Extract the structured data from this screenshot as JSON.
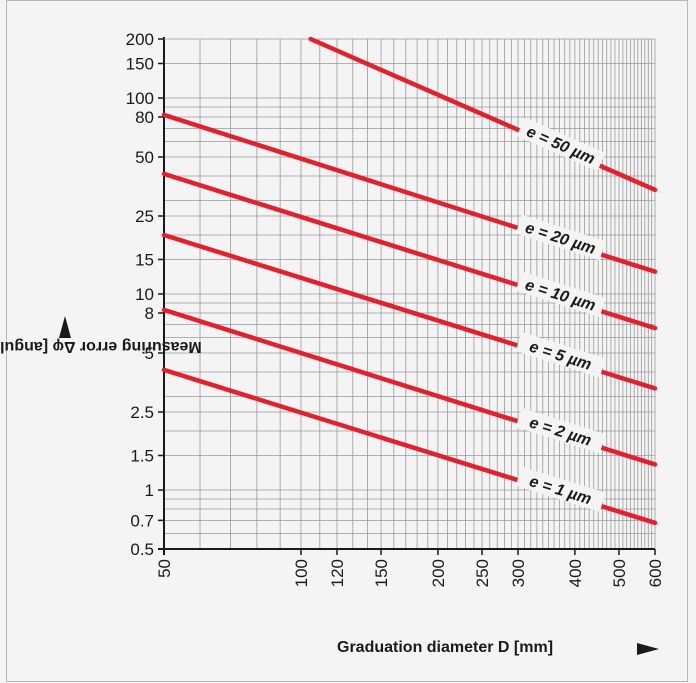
{
  "chart_data": {
    "type": "line",
    "title": "",
    "xlabel": "Graduation diameter D [mm]",
    "ylabel": "Measuring error Δφ [angular seconds]",
    "x_scale": "log",
    "y_scale": "log",
    "xlim": [
      50,
      600
    ],
    "ylim": [
      0.5,
      200
    ],
    "x_ticks": [
      50,
      100,
      120,
      150,
      200,
      250,
      300,
      400,
      500,
      600
    ],
    "y_ticks": [
      0.5,
      0.7,
      1,
      1.5,
      2.5,
      5,
      8,
      10,
      15,
      25,
      50,
      80,
      100,
      150,
      200
    ],
    "grid": true,
    "line_color": "#e3202c",
    "series": [
      {
        "name": "e = 50 µm",
        "x": [
          105,
          600
        ],
        "y": [
          200,
          34
        ]
      },
      {
        "name": "e = 20 µm",
        "x": [
          50,
          600
        ],
        "y": [
          82,
          13
        ]
      },
      {
        "name": "e = 10 µm",
        "x": [
          50,
          600
        ],
        "y": [
          41,
          6.7
        ]
      },
      {
        "name": "e = 5 µm",
        "x": [
          50,
          600
        ],
        "y": [
          20,
          3.3
        ]
      },
      {
        "name": "e = 2 µm",
        "x": [
          50,
          600
        ],
        "y": [
          8.3,
          1.35
        ]
      },
      {
        "name": "e = 1 µm",
        "x": [
          50,
          600
        ],
        "y": [
          4.1,
          0.68
        ]
      }
    ]
  }
}
